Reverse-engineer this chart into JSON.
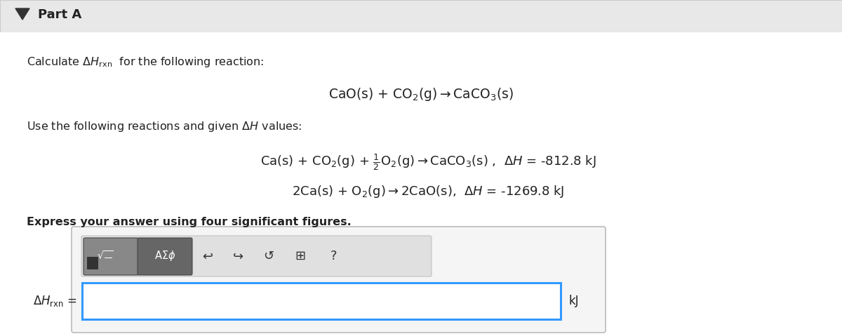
{
  "background_color": "#f0f0f0",
  "white_bg": "#ffffff",
  "header_bg": "#e8e8e8",
  "part_a_text": "Part A",
  "triangle_color": "#333333",
  "text_color": "#222222",
  "input_box_color": "#3399ff",
  "toolbar_bg1": "#888888",
  "toolbar_bg2": "#666666",
  "toolbar_area_bg": "#e0e0e0",
  "border_color": "#bbbbbb",
  "outer_box_bg": "#f5f5f5",
  "calculate_text": "Calculate $\\Delta H_{\\rm rxn}$  for the following reaction:",
  "main_reaction": "CaO(s) + CO$_2$(g)$\\rightarrow$CaCO$_3$(s)",
  "use_text": "Use the following reactions and given $\\Delta H$ values:",
  "reaction1": "Ca(s) + CO$_2$(g) + $\\frac{1}{2}$O$_2$(g)$\\rightarrow$CaCO$_3$(s) ,  $\\Delta H$ = -812.8 kJ",
  "reaction2": "2Ca(s) + O$_2$(g)$\\rightarrow$2CaO(s),  $\\Delta H$ = -1269.8 kJ",
  "express_text": "Express your answer using four significant figures.",
  "delta_h_label": "$\\Delta H_{\\rm rxn}$ =",
  "kj_label": "kJ"
}
